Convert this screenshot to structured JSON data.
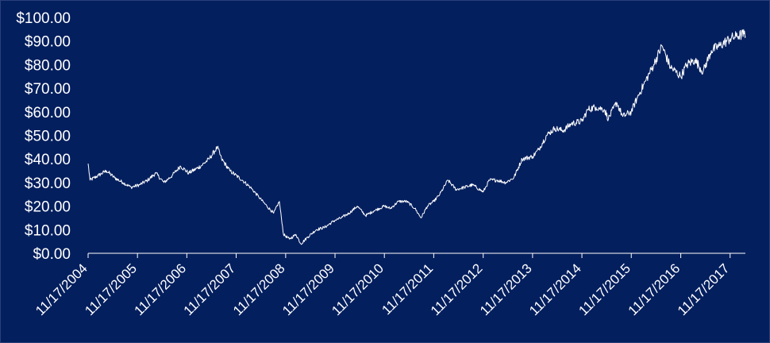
{
  "chart_data": {
    "type": "line",
    "title": "",
    "xlabel": "",
    "ylabel": "",
    "background_color": "#041f5e",
    "line_color": "#ffffff",
    "grid": false,
    "legend": "none",
    "ylim": [
      0,
      100
    ],
    "y_ticks": [
      "$0.00",
      "$10.00",
      "$20.00",
      "$30.00",
      "$40.00",
      "$50.00",
      "$60.00",
      "$70.00",
      "$80.00",
      "$90.00",
      "$100.00"
    ],
    "xlim": [
      "11/17/2004",
      "2018-03-10"
    ],
    "x_ticks": [
      "11/17/2004",
      "11/17/2005",
      "11/17/2006",
      "11/17/2007",
      "11/17/2008",
      "11/17/2009",
      "11/17/2010",
      "11/17/2011",
      "11/17/2012",
      "11/17/2013",
      "11/17/2014",
      "11/17/2015",
      "11/17/2016",
      "11/17/2017"
    ],
    "series": [
      {
        "x": [
          "2004-11-17",
          "2004-12-01",
          "2005-02-01",
          "2005-04-01",
          "2005-06-01",
          "2005-08-01",
          "2005-10-01",
          "2005-12-01",
          "2006-02-01",
          "2006-04-01",
          "2006-06-01",
          "2006-08-01",
          "2006-10-01",
          "2006-12-01",
          "2007-03-01",
          "2007-05-01",
          "2007-07-01",
          "2007-08-01",
          "2007-10-01",
          "2008-01-01",
          "2008-03-01",
          "2008-05-01",
          "2008-07-01",
          "2008-08-20",
          "2008-10-01",
          "2008-11-01",
          "2008-12-15",
          "2009-02-01",
          "2009-03-10",
          "2009-05-01",
          "2009-07-01",
          "2009-09-01",
          "2009-11-17",
          "2010-01-01",
          "2010-03-01",
          "2010-05-01",
          "2010-07-01",
          "2010-09-01",
          "2010-11-17",
          "2011-01-01",
          "2011-03-01",
          "2011-05-01",
          "2011-07-01",
          "2011-08-15",
          "2011-10-01",
          "2011-11-17",
          "2012-01-01",
          "2012-03-01",
          "2012-05-01",
          "2012-07-01",
          "2012-09-01",
          "2012-11-17",
          "2013-01-01",
          "2013-03-01",
          "2013-05-01",
          "2013-07-01",
          "2013-09-01",
          "2013-11-17",
          "2014-01-01",
          "2014-03-01",
          "2014-05-01",
          "2014-07-01",
          "2014-09-01",
          "2014-11-17",
          "2015-01-01",
          "2015-03-01",
          "2015-05-01",
          "2015-06-01",
          "2015-08-01",
          "2015-09-15",
          "2015-11-17",
          "2016-01-01",
          "2016-03-01",
          "2016-05-01",
          "2016-07-01",
          "2016-09-01",
          "2016-11-17",
          "2017-01-01",
          "2017-03-01",
          "2017-05-01",
          "2017-07-01",
          "2017-09-01",
          "2017-11-17",
          "2018-01-01",
          "2018-03-01",
          "2018-03-10"
        ],
        "y": [
          38,
          31,
          33,
          35,
          32,
          30,
          28,
          29,
          31,
          34,
          30,
          33,
          37,
          34,
          37,
          40,
          45,
          40,
          35,
          31,
          28,
          24,
          20,
          17,
          22,
          8,
          6,
          8,
          4,
          7,
          10,
          11,
          14,
          15,
          17,
          20,
          16,
          18,
          20,
          19,
          22,
          22,
          19,
          15,
          20,
          22,
          25,
          31,
          27,
          28,
          29,
          26,
          31,
          31,
          30,
          32,
          40,
          41,
          44,
          50,
          53,
          52,
          55,
          56,
          61,
          62,
          61,
          57,
          64,
          58,
          60,
          66,
          73,
          80,
          88,
          79,
          75,
          80,
          82,
          77,
          86,
          88,
          91,
          92,
          93,
          92
        ]
      }
    ]
  }
}
